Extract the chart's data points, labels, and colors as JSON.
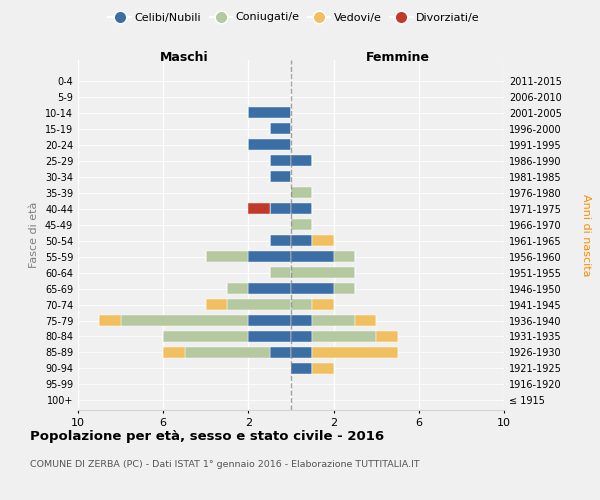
{
  "age_groups": [
    "100+",
    "95-99",
    "90-94",
    "85-89",
    "80-84",
    "75-79",
    "70-74",
    "65-69",
    "60-64",
    "55-59",
    "50-54",
    "45-49",
    "40-44",
    "35-39",
    "30-34",
    "25-29",
    "20-24",
    "15-19",
    "10-14",
    "5-9",
    "0-4"
  ],
  "birth_years": [
    "≤ 1915",
    "1916-1920",
    "1921-1925",
    "1926-1930",
    "1931-1935",
    "1936-1940",
    "1941-1945",
    "1946-1950",
    "1951-1955",
    "1956-1960",
    "1961-1965",
    "1966-1970",
    "1971-1975",
    "1976-1980",
    "1981-1985",
    "1986-1990",
    "1991-1995",
    "1996-2000",
    "2001-2005",
    "2006-2010",
    "2011-2015"
  ],
  "male": {
    "celibi": [
      0,
      0,
      0,
      1,
      2,
      2,
      0,
      2,
      0,
      2,
      1,
      0,
      1,
      0,
      1,
      1,
      2,
      1,
      2,
      0,
      0
    ],
    "coniugati": [
      0,
      0,
      0,
      4,
      4,
      6,
      3,
      1,
      1,
      2,
      0,
      0,
      0,
      0,
      0,
      0,
      0,
      0,
      0,
      0,
      0
    ],
    "vedovi": [
      0,
      0,
      0,
      1,
      0,
      1,
      1,
      0,
      0,
      0,
      0,
      0,
      0,
      0,
      0,
      0,
      0,
      0,
      0,
      0,
      0
    ],
    "divorziati": [
      0,
      0,
      0,
      0,
      0,
      0,
      0,
      0,
      0,
      0,
      0,
      0,
      1,
      0,
      0,
      0,
      0,
      0,
      0,
      0,
      0
    ]
  },
  "female": {
    "nubili": [
      0,
      0,
      1,
      1,
      1,
      1,
      0,
      2,
      0,
      2,
      1,
      0,
      1,
      0,
      0,
      1,
      0,
      0,
      0,
      0,
      0
    ],
    "coniugate": [
      0,
      0,
      0,
      0,
      3,
      2,
      1,
      1,
      3,
      1,
      0,
      1,
      0,
      1,
      0,
      0,
      0,
      0,
      0,
      0,
      0
    ],
    "vedove": [
      0,
      0,
      1,
      4,
      1,
      1,
      1,
      0,
      0,
      0,
      1,
      0,
      0,
      0,
      0,
      0,
      0,
      0,
      0,
      0,
      0
    ],
    "divorziate": [
      0,
      0,
      0,
      0,
      0,
      0,
      0,
      0,
      0,
      0,
      0,
      0,
      0,
      0,
      0,
      0,
      0,
      0,
      0,
      0,
      0
    ]
  },
  "colors": {
    "celibi_nubili": "#3a6ea5",
    "coniugati": "#b5c9a0",
    "vedovi": "#f0c060",
    "divorziati": "#c0392b"
  },
  "xlim": 10,
  "title": "Popolazione per età, sesso e stato civile - 2016",
  "subtitle": "COMUNE DI ZERBA (PC) - Dati ISTAT 1° gennaio 2016 - Elaborazione TUTTITALIA.IT",
  "ylabel_left": "Fasce di età",
  "ylabel_right": "Anni di nascita",
  "xlabel_male": "Maschi",
  "xlabel_female": "Femmine",
  "bg_color": "#f0f0f0"
}
